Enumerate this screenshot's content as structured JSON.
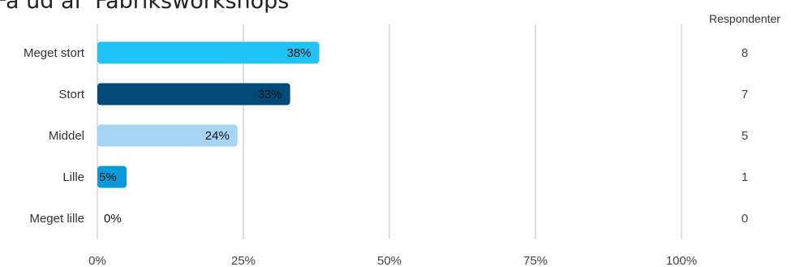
{
  "title": "Få ud af 'Fabriksworkshops'",
  "chart_data": {
    "type": "bar",
    "orientation": "horizontal",
    "title": "Få ud af 'Fabriksworkshops'",
    "categories": [
      "Meget stort",
      "Stort",
      "Middel",
      "Lille",
      "Meget lille"
    ],
    "values": [
      38,
      33,
      24,
      5,
      0
    ],
    "value_labels": [
      "38%",
      "33%",
      "24%",
      "5%",
      "0%"
    ],
    "respondents": [
      "8",
      "7",
      "5",
      "1",
      "0"
    ],
    "respondents_header": "Respondenter",
    "xlim": [
      0,
      100
    ],
    "ticks": [
      "0%",
      "25%",
      "50%",
      "75%",
      "100%"
    ],
    "grid": true,
    "colors": [
      "#1fc3f7",
      "#004b7a",
      "#a6d4f3",
      "#089bd7",
      "#089bd7"
    ]
  }
}
